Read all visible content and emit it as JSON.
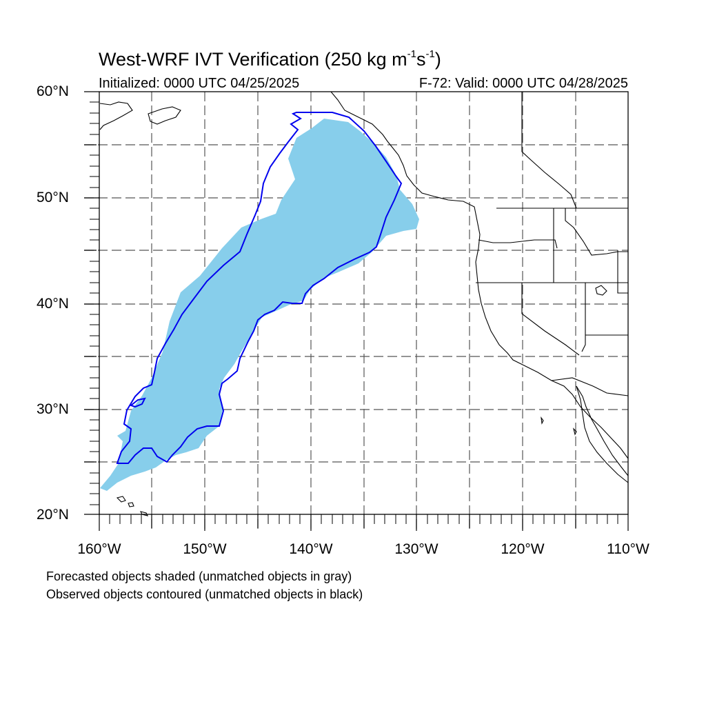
{
  "title": {
    "main": "West-WRF IVT Verification (250 kg m",
    "exp1": "-1",
    "mid": "s",
    "exp2": "-1",
    "close": ")"
  },
  "subtitle": {
    "initialized": "Initialized: 0000 UTC 04/25/2025",
    "valid": "F-72: Valid: 0000 UTC 04/28/2025"
  },
  "axes": {
    "lat_labels": [
      "60°N",
      "50°N",
      "40°N",
      "30°N",
      "20°N"
    ],
    "lon_labels": [
      "160°W",
      "150°W",
      "140°W",
      "130°W",
      "120°W",
      "110°W"
    ],
    "lat_range": [
      20,
      60
    ],
    "lon_range": [
      -160,
      -110
    ],
    "grid": "dashed, every 5 degrees"
  },
  "legend": {
    "line1": "Forecasted objects shaded (unmatched objects in gray)",
    "line2": "Observed objects contoured (unmatched objects in black)"
  },
  "colors": {
    "forecast_fill": "#87ceeb",
    "observed_contour": "#0000ee",
    "coastline": "#000000",
    "grid": "#555555"
  }
}
